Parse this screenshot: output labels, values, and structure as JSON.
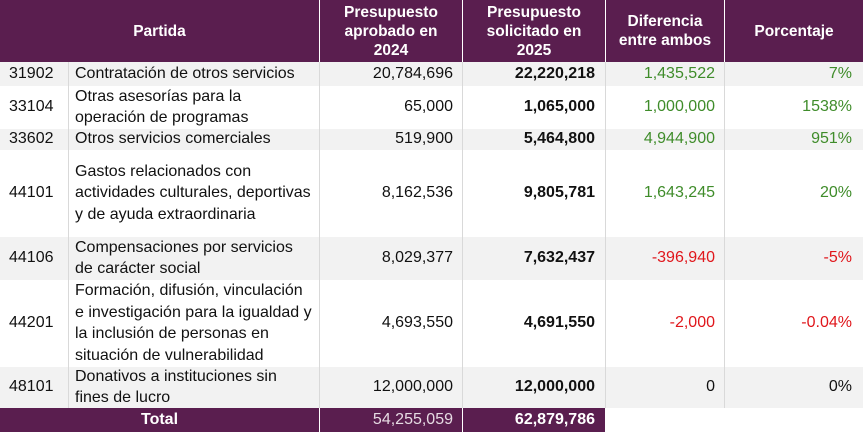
{
  "colors": {
    "header_bg": "#5a1e4f",
    "positive": "#3f8c2a",
    "negative": "#e0161b",
    "neutral": "#111111"
  },
  "headers": {
    "partida": "Partida",
    "aprobado": "Presupuesto\naprobado en\n2024",
    "solicitado": "Presupuesto\nsolicitado en\n2025",
    "diferencia": "Diferencia\nentre ambos",
    "porcentaje": "Porcentaje"
  },
  "rows": [
    {
      "code": "31902",
      "desc": "Contratación de otros servicios",
      "aprobado_2024": "20,784,696",
      "solicitado_2025": "22,220,218",
      "diferencia": "1,435,522",
      "porcentaje": "7%",
      "sign": "positive"
    },
    {
      "code": "33104",
      "desc": "Otras asesorías para la operación de programas",
      "aprobado_2024": "65,000",
      "solicitado_2025": "1,065,000",
      "diferencia": "1,000,000",
      "porcentaje": "1538%",
      "sign": "positive"
    },
    {
      "code": "33602",
      "desc": "Otros servicios comerciales",
      "aprobado_2024": "519,900",
      "solicitado_2025": "5,464,800",
      "diferencia": "4,944,900",
      "porcentaje": "951%",
      "sign": "positive"
    },
    {
      "code": "44101",
      "desc": "Gastos relacionados con actividades culturales, deportivas y de ayuda extraordinaria",
      "aprobado_2024": "8,162,536",
      "solicitado_2025": "9,805,781",
      "diferencia": "1,643,245",
      "porcentaje": "20%",
      "sign": "positive"
    },
    {
      "code": "44106",
      "desc": "Compensaciones por servicios de carácter social",
      "aprobado_2024": "8,029,377",
      "solicitado_2025": "7,632,437",
      "diferencia": "-396,940",
      "porcentaje": "-5%",
      "sign": "negative"
    },
    {
      "code": "44201",
      "desc": "Formación, difusión, vinculación e investigación para la igualdad y la inclusión de personas en situación de vulnerabilidad",
      "aprobado_2024": "4,693,550",
      "solicitado_2025": "4,691,550",
      "diferencia": "-2,000",
      "porcentaje": "-0.04%",
      "sign": "negative"
    },
    {
      "code": "48101",
      "desc": "Donativos a instituciones sin fines de lucro",
      "aprobado_2024": "12,000,000",
      "solicitado_2025": "12,000,000",
      "diferencia": "0",
      "porcentaje": "0%",
      "sign": "neutral"
    }
  ],
  "total": {
    "label": "Total",
    "aprobado_2024": "54,255,059",
    "solicitado_2025": "62,879,786"
  }
}
